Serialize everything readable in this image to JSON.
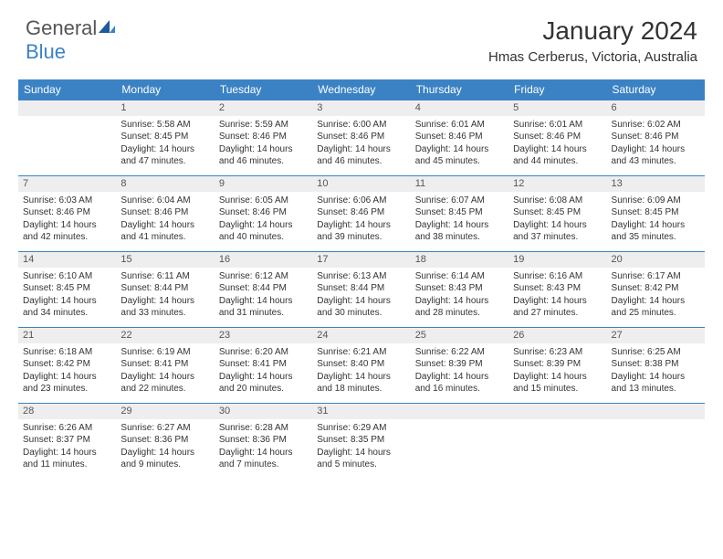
{
  "logo": {
    "general": "General",
    "blue": "Blue"
  },
  "title": "January 2024",
  "location": "Hmas Cerberus, Victoria, Australia",
  "colors": {
    "header_bg": "#3b82c4",
    "daynum_bg": "#eeeeee",
    "rule": "#3b82c4"
  },
  "weekdays": [
    "Sunday",
    "Monday",
    "Tuesday",
    "Wednesday",
    "Thursday",
    "Friday",
    "Saturday"
  ],
  "weeks": [
    {
      "nums": [
        "",
        "1",
        "2",
        "3",
        "4",
        "5",
        "6"
      ],
      "info": [
        "",
        "Sunrise: 5:58 AM\nSunset: 8:45 PM\nDaylight: 14 hours and 47 minutes.",
        "Sunrise: 5:59 AM\nSunset: 8:46 PM\nDaylight: 14 hours and 46 minutes.",
        "Sunrise: 6:00 AM\nSunset: 8:46 PM\nDaylight: 14 hours and 46 minutes.",
        "Sunrise: 6:01 AM\nSunset: 8:46 PM\nDaylight: 14 hours and 45 minutes.",
        "Sunrise: 6:01 AM\nSunset: 8:46 PM\nDaylight: 14 hours and 44 minutes.",
        "Sunrise: 6:02 AM\nSunset: 8:46 PM\nDaylight: 14 hours and 43 minutes."
      ]
    },
    {
      "nums": [
        "7",
        "8",
        "9",
        "10",
        "11",
        "12",
        "13"
      ],
      "info": [
        "Sunrise: 6:03 AM\nSunset: 8:46 PM\nDaylight: 14 hours and 42 minutes.",
        "Sunrise: 6:04 AM\nSunset: 8:46 PM\nDaylight: 14 hours and 41 minutes.",
        "Sunrise: 6:05 AM\nSunset: 8:46 PM\nDaylight: 14 hours and 40 minutes.",
        "Sunrise: 6:06 AM\nSunset: 8:46 PM\nDaylight: 14 hours and 39 minutes.",
        "Sunrise: 6:07 AM\nSunset: 8:45 PM\nDaylight: 14 hours and 38 minutes.",
        "Sunrise: 6:08 AM\nSunset: 8:45 PM\nDaylight: 14 hours and 37 minutes.",
        "Sunrise: 6:09 AM\nSunset: 8:45 PM\nDaylight: 14 hours and 35 minutes."
      ]
    },
    {
      "nums": [
        "14",
        "15",
        "16",
        "17",
        "18",
        "19",
        "20"
      ],
      "info": [
        "Sunrise: 6:10 AM\nSunset: 8:45 PM\nDaylight: 14 hours and 34 minutes.",
        "Sunrise: 6:11 AM\nSunset: 8:44 PM\nDaylight: 14 hours and 33 minutes.",
        "Sunrise: 6:12 AM\nSunset: 8:44 PM\nDaylight: 14 hours and 31 minutes.",
        "Sunrise: 6:13 AM\nSunset: 8:44 PM\nDaylight: 14 hours and 30 minutes.",
        "Sunrise: 6:14 AM\nSunset: 8:43 PM\nDaylight: 14 hours and 28 minutes.",
        "Sunrise: 6:16 AM\nSunset: 8:43 PM\nDaylight: 14 hours and 27 minutes.",
        "Sunrise: 6:17 AM\nSunset: 8:42 PM\nDaylight: 14 hours and 25 minutes."
      ]
    },
    {
      "nums": [
        "21",
        "22",
        "23",
        "24",
        "25",
        "26",
        "27"
      ],
      "info": [
        "Sunrise: 6:18 AM\nSunset: 8:42 PM\nDaylight: 14 hours and 23 minutes.",
        "Sunrise: 6:19 AM\nSunset: 8:41 PM\nDaylight: 14 hours and 22 minutes.",
        "Sunrise: 6:20 AM\nSunset: 8:41 PM\nDaylight: 14 hours and 20 minutes.",
        "Sunrise: 6:21 AM\nSunset: 8:40 PM\nDaylight: 14 hours and 18 minutes.",
        "Sunrise: 6:22 AM\nSunset: 8:39 PM\nDaylight: 14 hours and 16 minutes.",
        "Sunrise: 6:23 AM\nSunset: 8:39 PM\nDaylight: 14 hours and 15 minutes.",
        "Sunrise: 6:25 AM\nSunset: 8:38 PM\nDaylight: 14 hours and 13 minutes."
      ]
    },
    {
      "nums": [
        "28",
        "29",
        "30",
        "31",
        "",
        "",
        ""
      ],
      "info": [
        "Sunrise: 6:26 AM\nSunset: 8:37 PM\nDaylight: 14 hours and 11 minutes.",
        "Sunrise: 6:27 AM\nSunset: 8:36 PM\nDaylight: 14 hours and 9 minutes.",
        "Sunrise: 6:28 AM\nSunset: 8:36 PM\nDaylight: 14 hours and 7 minutes.",
        "Sunrise: 6:29 AM\nSunset: 8:35 PM\nDaylight: 14 hours and 5 minutes.",
        "",
        "",
        ""
      ]
    }
  ]
}
